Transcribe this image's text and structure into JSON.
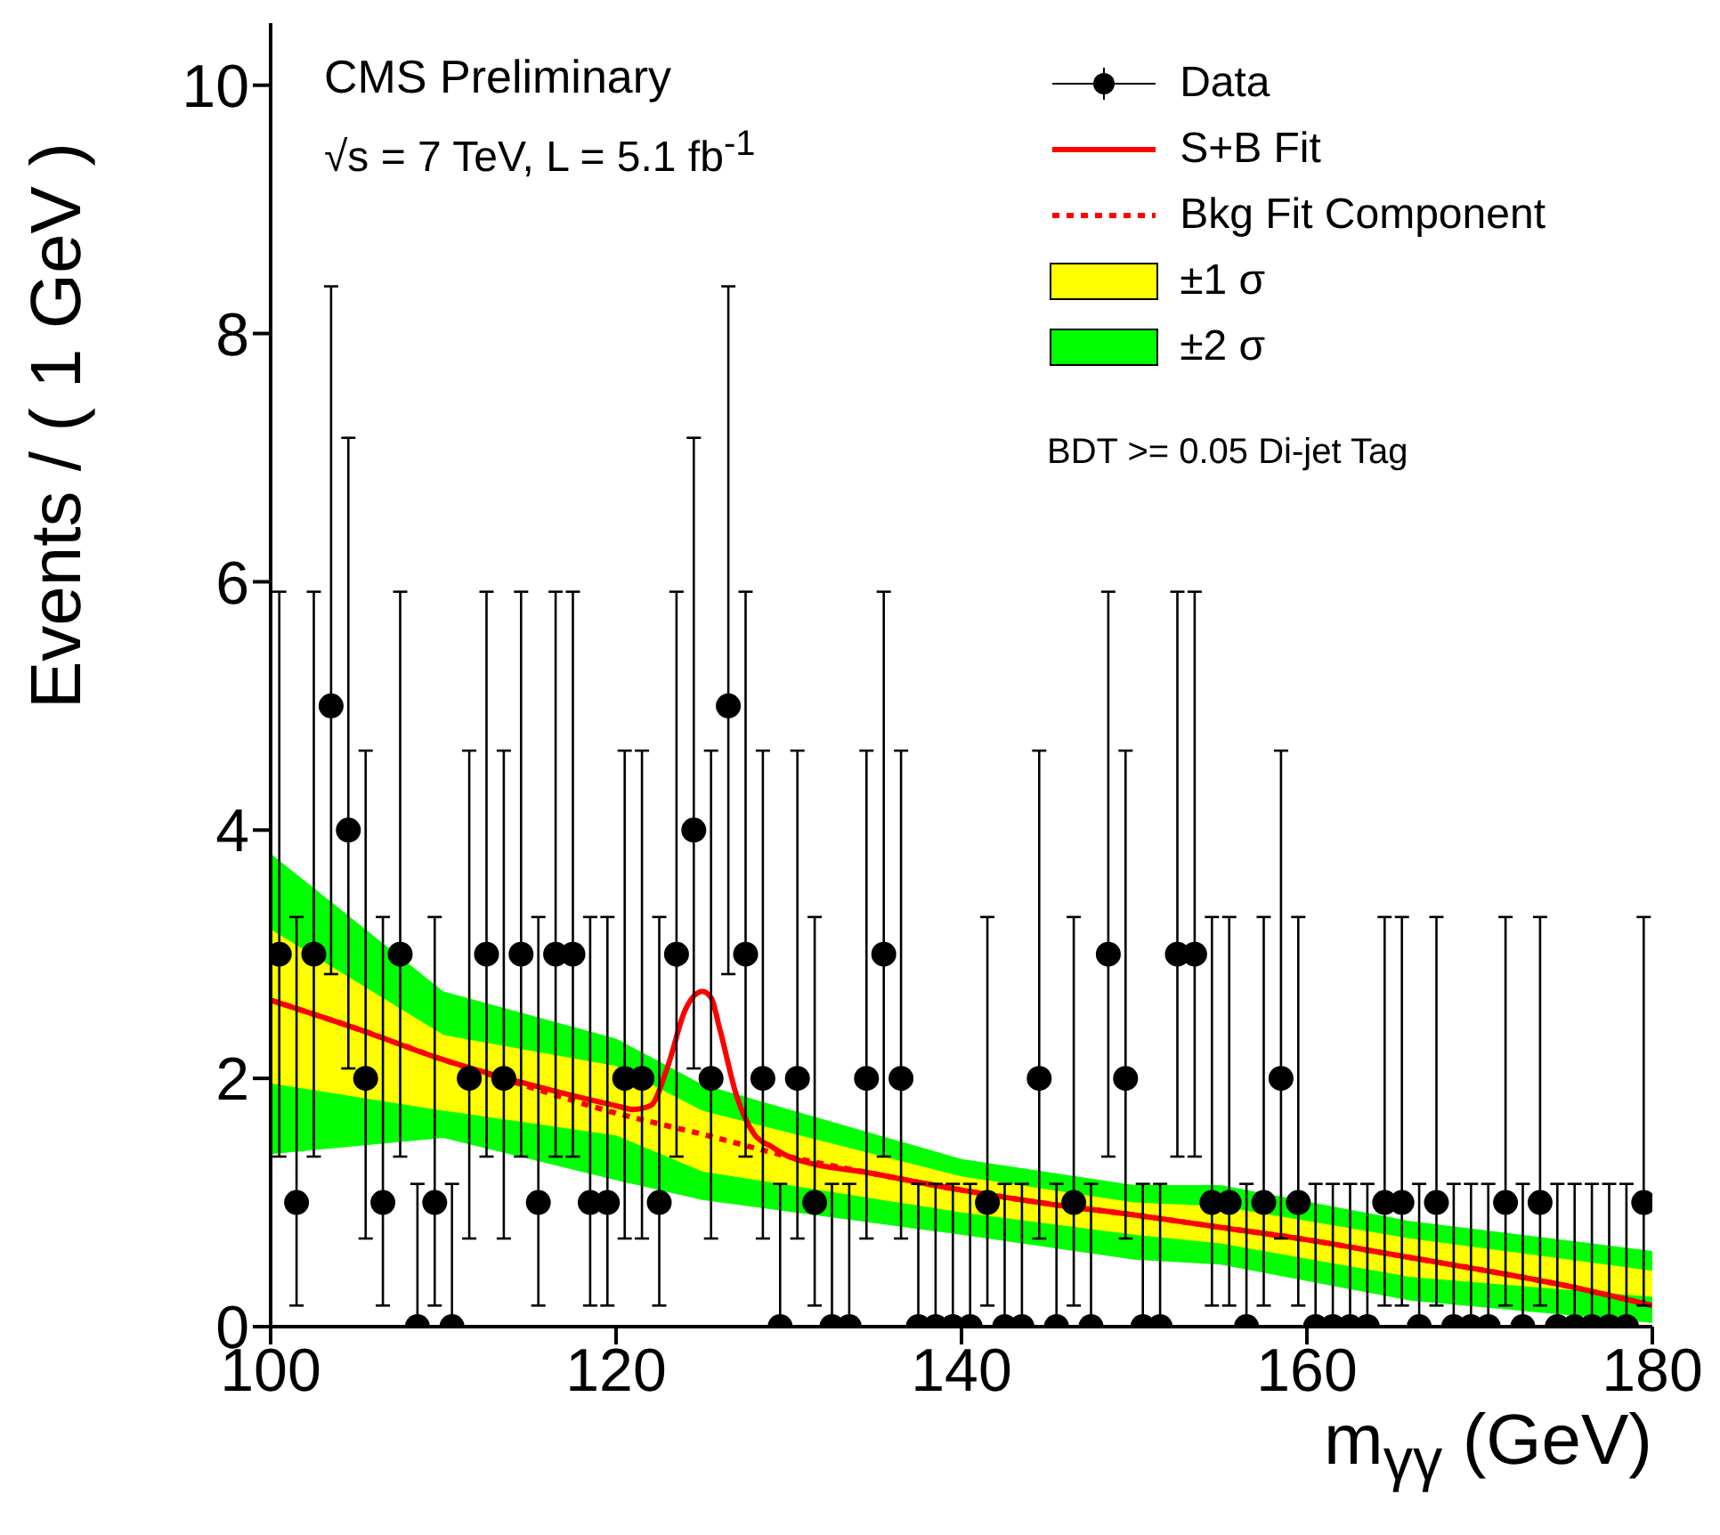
{
  "chart_data": {
    "type": "scatter",
    "xlabel": "m$_{γγ}$ (GeV)",
    "ylabel": "Events / ( 1 GeV )",
    "annotations": [
      "CMS Preliminary",
      "√s = 7 TeV, L = 5.1 fb$^{-1}$",
      "BDT >= 0.05 Di-jet Tag"
    ],
    "xlim": [
      100,
      180
    ],
    "xticks": [
      100,
      120,
      140,
      160,
      180
    ],
    "ylim": [
      0,
      10.5
    ],
    "yticks": [
      0,
      2,
      4,
      6,
      8,
      10
    ],
    "grid": false,
    "legend": "top right",
    "series": [
      {
        "name": "Data",
        "type": "scatter",
        "color": "#000000",
        "marker": "circle",
        "x": [
          100.5,
          101.5,
          102.5,
          103.5,
          104.5,
          105.5,
          106.5,
          107.5,
          108.5,
          109.5,
          110.5,
          111.5,
          112.5,
          113.5,
          114.5,
          115.5,
          116.5,
          117.5,
          118.5,
          119.5,
          120.5,
          121.5,
          122.5,
          123.5,
          124.5,
          125.5,
          126.5,
          127.5,
          128.5,
          129.5,
          130.5,
          131.5,
          132.5,
          133.5,
          134.5,
          135.5,
          136.5,
          137.5,
          138.5,
          139.5,
          140.5,
          141.5,
          142.5,
          143.5,
          144.5,
          145.5,
          146.5,
          147.5,
          148.5,
          149.5,
          150.5,
          151.5,
          152.5,
          153.5,
          154.5,
          155.5,
          156.5,
          157.5,
          158.5,
          159.5,
          160.5,
          161.5,
          162.5,
          163.5,
          164.5,
          165.5,
          166.5,
          167.5,
          168.5,
          169.5,
          170.5,
          171.5,
          172.5,
          173.5,
          174.5,
          175.5,
          176.5,
          177.5,
          178.5,
          179.5
        ],
        "values": [
          3,
          1,
          3,
          5,
          4,
          2,
          1,
          3,
          0,
          1,
          0,
          2,
          3,
          2,
          3,
          1,
          3,
          3,
          1,
          1,
          2,
          2,
          1,
          3,
          4,
          2,
          5,
          3,
          2,
          0,
          2,
          1,
          0,
          0,
          2,
          3,
          2,
          0,
          0,
          0,
          0,
          1,
          0,
          0,
          2,
          0,
          1,
          0,
          3,
          2,
          0,
          0,
          3,
          3,
          1,
          1,
          0,
          1,
          2,
          1,
          0,
          0,
          0,
          0,
          1,
          1,
          0,
          1,
          0,
          0,
          0,
          1,
          0,
          1,
          0,
          0,
          0,
          0,
          0,
          1
        ],
        "errors": [
          [
            1.37,
            5.92
          ],
          [
            0.17,
            3.3
          ],
          [
            1.37,
            5.92
          ],
          [
            2.84,
            8.38
          ],
          [
            2.08,
            7.16
          ],
          [
            0.71,
            4.64
          ],
          [
            0.17,
            3.3
          ],
          [
            1.37,
            5.92
          ],
          [
            0,
            1.15
          ],
          [
            0.17,
            3.3
          ],
          [
            0,
            1.15
          ],
          [
            0.71,
            4.64
          ],
          [
            1.37,
            5.92
          ],
          [
            0.71,
            4.64
          ],
          [
            1.37,
            5.92
          ],
          [
            0.17,
            3.3
          ],
          [
            1.37,
            5.92
          ],
          [
            1.37,
            5.92
          ],
          [
            0.17,
            3.3
          ],
          [
            0.17,
            3.3
          ],
          [
            0.71,
            4.64
          ],
          [
            0.71,
            4.64
          ],
          [
            0.17,
            3.3
          ],
          [
            1.37,
            5.92
          ],
          [
            2.08,
            7.16
          ],
          [
            0.71,
            4.64
          ],
          [
            2.84,
            8.38
          ],
          [
            1.37,
            5.92
          ],
          [
            0.71,
            4.64
          ],
          [
            0,
            1.15
          ],
          [
            0.71,
            4.64
          ],
          [
            0.17,
            3.3
          ],
          [
            0,
            1.15
          ],
          [
            0,
            1.15
          ],
          [
            0.71,
            4.64
          ],
          [
            1.37,
            5.92
          ],
          [
            0.71,
            4.64
          ],
          [
            0,
            1.15
          ],
          [
            0,
            1.15
          ],
          [
            0,
            1.15
          ],
          [
            0,
            1.15
          ],
          [
            0.17,
            3.3
          ],
          [
            0,
            1.15
          ],
          [
            0,
            1.15
          ],
          [
            0.71,
            4.64
          ],
          [
            0,
            1.15
          ],
          [
            0.17,
            3.3
          ],
          [
            0,
            1.15
          ],
          [
            1.37,
            5.92
          ],
          [
            0.71,
            4.64
          ],
          [
            0,
            1.15
          ],
          [
            0,
            1.15
          ],
          [
            1.37,
            5.92
          ],
          [
            1.37,
            5.92
          ],
          [
            0.17,
            3.3
          ],
          [
            0.17,
            3.3
          ],
          [
            0,
            1.15
          ],
          [
            0.17,
            3.3
          ],
          [
            0.71,
            4.64
          ],
          [
            0.17,
            3.3
          ],
          [
            0,
            1.15
          ],
          [
            0,
            1.15
          ],
          [
            0,
            1.15
          ],
          [
            0,
            1.15
          ],
          [
            0.17,
            3.3
          ],
          [
            0.17,
            3.3
          ],
          [
            0,
            1.15
          ],
          [
            0.17,
            3.3
          ],
          [
            0,
            1.15
          ],
          [
            0,
            1.15
          ],
          [
            0,
            1.15
          ],
          [
            0.17,
            3.3
          ],
          [
            0,
            1.15
          ],
          [
            0.17,
            3.3
          ],
          [
            0,
            1.15
          ],
          [
            0,
            1.15
          ],
          [
            0,
            1.15
          ],
          [
            0,
            1.15
          ],
          [
            0,
            1.15
          ],
          [
            0.17,
            3.3
          ]
        ]
      },
      {
        "name": "S+B Fit",
        "type": "line",
        "color": "#ff0000",
        "line_style": "solid",
        "x": [
          100,
          105,
          110,
          115,
          120,
          121,
          122,
          123,
          124,
          125,
          125.5,
          126,
          127,
          128,
          129,
          130,
          135,
          140,
          145,
          150,
          155,
          160,
          165,
          170,
          175,
          180
        ],
        "values": [
          2.63,
          2.4,
          2.15,
          1.95,
          1.78,
          1.75,
          1.78,
          2.1,
          2.55,
          2.7,
          2.65,
          2.4,
          1.85,
          1.55,
          1.45,
          1.37,
          1.23,
          1.1,
          0.99,
          0.9,
          0.8,
          0.7,
          0.58,
          0.46,
          0.33,
          0.17
        ]
      },
      {
        "name": "Bkg Fit Component",
        "type": "line",
        "color": "#ff0000",
        "line_style": "dotted",
        "x": [
          100,
          105,
          110,
          115,
          120,
          122,
          125,
          130,
          135,
          140,
          145,
          150,
          155,
          160,
          165,
          170,
          175,
          180
        ],
        "values": [
          2.63,
          2.4,
          2.15,
          1.93,
          1.72,
          1.65,
          1.55,
          1.37,
          1.23,
          1.1,
          0.99,
          0.9,
          0.8,
          0.7,
          0.58,
          0.46,
          0.33,
          0.17
        ]
      },
      {
        "name": "±1 σ",
        "type": "line",
        "color": "#ffff00",
        "x": [
          100,
          110,
          120,
          125,
          140,
          150,
          155,
          166,
          180
        ],
        "values": [
          null,
          null,
          null,
          null,
          null,
          null,
          null,
          null,
          null
        ],
        "lower": [
          1.96,
          1.74,
          1.54,
          1.25,
          0.92,
          0.74,
          0.67,
          0.4,
          0.24
        ],
        "upper": [
          3.2,
          2.35,
          2.1,
          1.74,
          1.21,
          1.0,
          0.97,
          0.71,
          0.45
        ]
      },
      {
        "name": "±2 σ",
        "type": "line",
        "color": "#00ff00",
        "x": [
          100,
          110,
          120,
          125,
          140,
          150,
          155,
          166,
          180
        ],
        "values": [
          null,
          null,
          null,
          null,
          null,
          null,
          null,
          null,
          null
        ],
        "lower": [
          1.39,
          1.52,
          1.18,
          1.02,
          0.74,
          0.54,
          0.5,
          0.21,
          0.03
        ],
        "upper": [
          3.81,
          2.7,
          2.32,
          1.95,
          1.35,
          1.14,
          1.14,
          0.85,
          0.61
        ]
      }
    ]
  }
}
